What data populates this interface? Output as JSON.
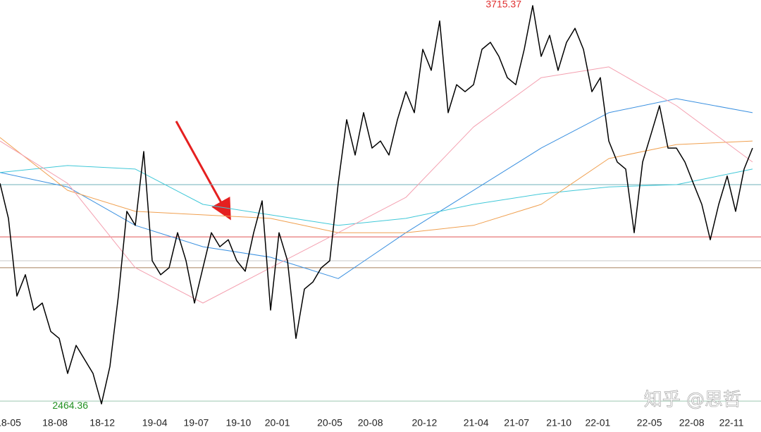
{
  "chart_data": {
    "type": "line",
    "xlim": [
      0,
      90
    ],
    "ylim": [
      2376,
      3733
    ],
    "xticks": [
      {
        "value": 1,
        "label": "18-05"
      },
      {
        "value": 6.5,
        "label": "18-08"
      },
      {
        "value": 12.1,
        "label": "18-12"
      },
      {
        "value": 18.3,
        "label": "19-04"
      },
      {
        "value": 23.2,
        "label": "19-07"
      },
      {
        "value": 28.2,
        "label": "19-10"
      },
      {
        "value": 32.8,
        "label": "20-01"
      },
      {
        "value": 39,
        "label": "20-05"
      },
      {
        "value": 43.8,
        "label": "20-08"
      },
      {
        "value": 50.2,
        "label": "20-12"
      },
      {
        "value": 56.3,
        "label": "21-04"
      },
      {
        "value": 61.1,
        "label": "21-07"
      },
      {
        "value": 66.1,
        "label": "21-10"
      },
      {
        "value": 70.7,
        "label": "22-01"
      },
      {
        "value": 76.8,
        "label": "22-05"
      },
      {
        "value": 81.8,
        "label": "22-08"
      },
      {
        "value": 86.5,
        "label": "22-11"
      }
    ],
    "reference_lines": [
      {
        "value": 3153,
        "color": "#6fb0b8"
      },
      {
        "value": 2989,
        "color": "#e05555"
      },
      {
        "value": 2892,
        "color": "#a8805c"
      },
      {
        "value": 2914,
        "color": "#c8c8c8"
      },
      {
        "value": 2473,
        "color": "#9cc8b0"
      }
    ],
    "series": [
      {
        "color": "#000000",
        "width": 1.5,
        "x": [
          0,
          1,
          2,
          3,
          4,
          5,
          6,
          7,
          8,
          9,
          10,
          11,
          12,
          13,
          14,
          15,
          16,
          17,
          18,
          19,
          20,
          21,
          22,
          23,
          24,
          25,
          26,
          27,
          28,
          29,
          30,
          31,
          32,
          33,
          34,
          35,
          36,
          37,
          38,
          39,
          40,
          41,
          42,
          43,
          44,
          45,
          46,
          47,
          48,
          49,
          50,
          51,
          52,
          53,
          54,
          55,
          56,
          57,
          58,
          59,
          60,
          61,
          62,
          63,
          64,
          65,
          66,
          67,
          68,
          69,
          70,
          71,
          72,
          73,
          74,
          75,
          76,
          77,
          78,
          79,
          80,
          81,
          82,
          83,
          84,
          85,
          86,
          87,
          88,
          89
        ],
        "values": [
          3157,
          3047,
          2803,
          2870,
          2759,
          2781,
          2692,
          2670,
          2560,
          2648,
          2604,
          2560,
          2464.36,
          2582,
          2803,
          3069,
          3025,
          3257,
          2914,
          2870,
          2892,
          3002,
          2914,
          2781,
          2892,
          3002,
          2958,
          2980,
          2914,
          2881,
          3002,
          3102,
          2759,
          3002,
          2914,
          2670,
          2825,
          2847,
          2892,
          2914,
          3157,
          3357,
          3246,
          3379,
          3268,
          3290,
          3246,
          3357,
          3445,
          3379,
          3578,
          3512,
          3667,
          3379,
          3467,
          3445,
          3467,
          3578,
          3600,
          3556,
          3489,
          3467,
          3578,
          3715.37,
          3556,
          3622,
          3512,
          3600,
          3644,
          3578,
          3445,
          3489,
          3290,
          3224,
          3202,
          3002,
          3224,
          3312,
          3401,
          3268,
          3268,
          3224,
          3157,
          3091,
          2980,
          3091,
          3180,
          3069,
          3202,
          3268
        ]
      },
      {
        "color": "#f4a0b0",
        "width": 1,
        "x": [
          0,
          8,
          16,
          24,
          32,
          40,
          48,
          56,
          64,
          72,
          80,
          89
        ],
        "values": [
          3290,
          3157,
          2892,
          2781,
          2892,
          3002,
          3113,
          3334,
          3489,
          3523,
          3401,
          3224
        ]
      },
      {
        "color": "#f0a050",
        "width": 1,
        "x": [
          0,
          8,
          16,
          24,
          32,
          40,
          48,
          56,
          64,
          72,
          80,
          89
        ],
        "values": [
          3301,
          3135,
          3069,
          3058,
          3047,
          3002,
          3002,
          3025,
          3091,
          3235,
          3279,
          3290
        ]
      },
      {
        "color": "#40c8d8",
        "width": 1,
        "x": [
          0,
          8,
          16,
          24,
          32,
          40,
          48,
          56,
          64,
          72,
          80,
          89
        ],
        "values": [
          3191,
          3213,
          3202,
          3091,
          3058,
          3025,
          3047,
          3091,
          3124,
          3146,
          3153,
          3202
        ]
      },
      {
        "color": "#3a90e0",
        "width": 1,
        "x": [
          0,
          8,
          16,
          24,
          32,
          40,
          48,
          56,
          64,
          72,
          80,
          89
        ],
        "values": [
          3191,
          3146,
          3025,
          2958,
          2925,
          2858,
          3002,
          3135,
          3268,
          3379,
          3423,
          3379
        ]
      }
    ],
    "high_color": "#e03030",
    "low_color": "#209020",
    "watermark": "知乎 @思哲"
  }
}
